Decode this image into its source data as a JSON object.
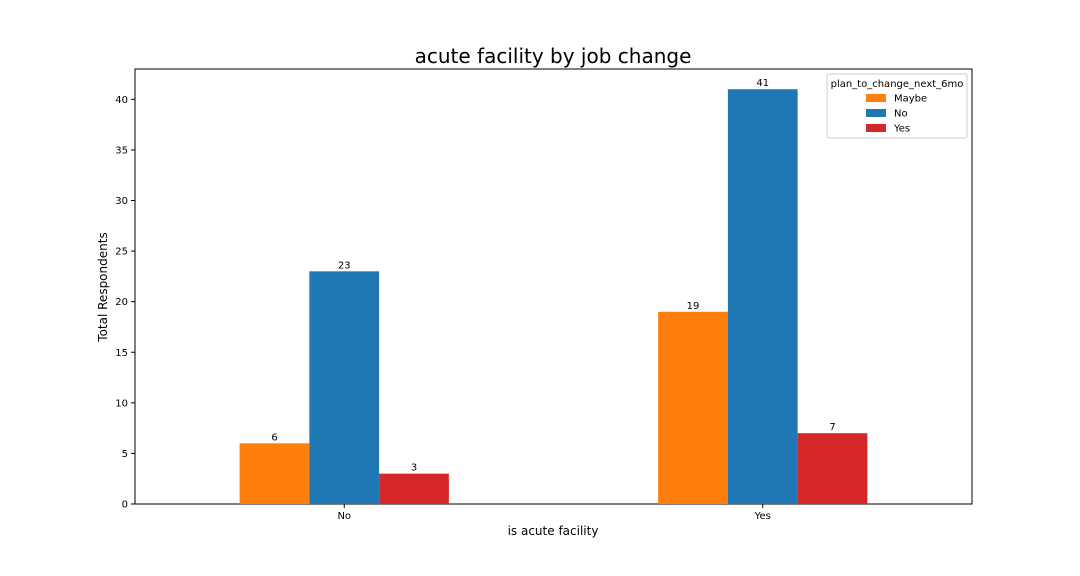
{
  "chart_data": {
    "type": "bar",
    "title": "acute facility by job change",
    "xlabel": "is acute facility",
    "ylabel": "Total Respondents",
    "categories": [
      "No",
      "Yes"
    ],
    "ylim": [
      0,
      43
    ],
    "yticks": [
      0,
      5,
      10,
      15,
      20,
      25,
      30,
      35,
      40
    ],
    "grid": false,
    "legend": {
      "title": "plan_to_change_next_6mo",
      "placement": "top-right"
    },
    "series": [
      {
        "name": "Maybe",
        "color": "#ff7f0e",
        "values": [
          6,
          19
        ]
      },
      {
        "name": "No",
        "color": "#1f77b4",
        "values": [
          23,
          41
        ]
      },
      {
        "name": "Yes",
        "color": "#d62728",
        "values": [
          3,
          7
        ]
      }
    ]
  }
}
